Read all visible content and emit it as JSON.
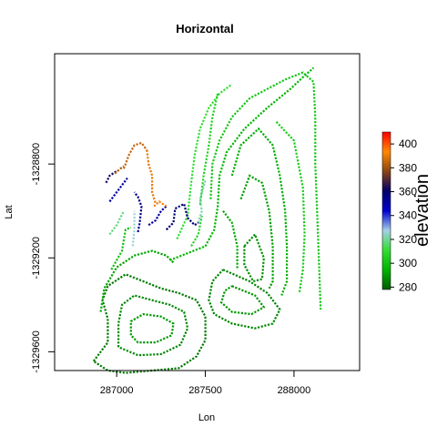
{
  "chart_data": {
    "type": "heatmap",
    "title": "Horizontal",
    "xlabel": "Lon",
    "ylabel": "Lat",
    "xlim": [
      286650,
      288370
    ],
    "ylim": [
      -1329680,
      -1328330
    ],
    "x_ticks": [
      {
        "value": 287000,
        "label": "287000"
      },
      {
        "value": 287500,
        "label": "287500"
      },
      {
        "value": 288000,
        "label": "288000"
      }
    ],
    "y_ticks": [
      {
        "value": -1328800,
        "label": "-1328800"
      },
      {
        "value": -1329200,
        "label": "-1329200"
      },
      {
        "value": -1329600,
        "label": "-1329600"
      }
    ],
    "colorbar": {
      "title": "elevation",
      "range": [
        278,
        410
      ],
      "ticks": [
        280,
        300,
        320,
        340,
        360,
        380,
        400
      ],
      "colors": [
        "#005a00",
        "#00b200",
        "#33dd33",
        "#a6cfea",
        "#0000cc",
        "#000066",
        "#8b4513",
        "#ff8800",
        "#ff0000"
      ]
    },
    "contours": [
      {
        "elevation": 284,
        "points": [
          [
            286870,
            -1329640
          ],
          [
            286950,
            -1329560
          ],
          [
            286950,
            -1329460
          ],
          [
            286920,
            -1329380
          ],
          [
            286950,
            -1329320
          ],
          [
            287050,
            -1329270
          ],
          [
            287150,
            -1329300
          ],
          [
            287250,
            -1329330
          ],
          [
            287350,
            -1329350
          ],
          [
            287450,
            -1329380
          ],
          [
            287500,
            -1329450
          ],
          [
            287500,
            -1329550
          ],
          [
            287450,
            -1329620
          ],
          [
            287350,
            -1329670
          ],
          [
            287200,
            -1329680
          ],
          [
            287050,
            -1329690
          ],
          [
            286950,
            -1329680
          ],
          [
            286870,
            -1329640
          ]
        ]
      },
      {
        "elevation": 287,
        "points": [
          [
            287010,
            -1329580
          ],
          [
            287010,
            -1329480
          ],
          [
            287030,
            -1329400
          ],
          [
            287100,
            -1329360
          ],
          [
            287200,
            -1329380
          ],
          [
            287300,
            -1329400
          ],
          [
            287380,
            -1329430
          ],
          [
            287400,
            -1329500
          ],
          [
            287360,
            -1329570
          ],
          [
            287250,
            -1329610
          ],
          [
            287120,
            -1329615
          ],
          [
            287010,
            -1329580
          ]
        ]
      },
      {
        "elevation": 290,
        "points": [
          [
            287080,
            -1329530
          ],
          [
            287080,
            -1329470
          ],
          [
            287150,
            -1329440
          ],
          [
            287250,
            -1329450
          ],
          [
            287320,
            -1329480
          ],
          [
            287310,
            -1329530
          ],
          [
            287220,
            -1329560
          ],
          [
            287120,
            -1329560
          ],
          [
            287080,
            -1329530
          ]
        ]
      },
      {
        "elevation": 286,
        "points": [
          [
            287600,
            -1329250
          ],
          [
            287750,
            -1329300
          ],
          [
            287850,
            -1329350
          ],
          [
            287920,
            -1329420
          ],
          [
            287880,
            -1329480
          ],
          [
            287780,
            -1329500
          ],
          [
            287650,
            -1329480
          ],
          [
            287550,
            -1329440
          ],
          [
            287520,
            -1329380
          ],
          [
            287540,
            -1329300
          ],
          [
            287600,
            -1329250
          ]
        ]
      },
      {
        "elevation": 289,
        "points": [
          [
            287650,
            -1329320
          ],
          [
            287780,
            -1329360
          ],
          [
            287830,
            -1329410
          ],
          [
            287760,
            -1329440
          ],
          [
            287650,
            -1329430
          ],
          [
            287590,
            -1329390
          ],
          [
            287610,
            -1329340
          ],
          [
            287650,
            -1329320
          ]
        ]
      },
      {
        "elevation": 292,
        "points": [
          [
            286910,
            -1329430
          ],
          [
            286930,
            -1329330
          ],
          [
            287000,
            -1329240
          ],
          [
            287100,
            -1329190
          ],
          [
            287200,
            -1329170
          ],
          [
            287280,
            -1329190
          ],
          [
            287320,
            -1329220
          ]
        ]
      },
      {
        "elevation": 300,
        "points": [
          [
            286970,
            -1329250
          ],
          [
            287030,
            -1329170
          ],
          [
            287050,
            -1329080
          ],
          [
            287080,
            -1329070
          ]
        ]
      },
      {
        "elevation": 296,
        "points": [
          [
            287300,
            -1329210
          ],
          [
            287400,
            -1329180
          ],
          [
            287500,
            -1329150
          ],
          [
            287550,
            -1329080
          ],
          [
            287570,
            -1328980
          ],
          [
            287580,
            -1328850
          ],
          [
            287620,
            -1328750
          ],
          [
            287720,
            -1328650
          ],
          [
            287850,
            -1328560
          ],
          [
            287980,
            -1328480
          ],
          [
            288050,
            -1328430
          ],
          [
            288110,
            -1328390
          ]
        ]
      },
      {
        "elevation": 302,
        "points": [
          [
            287530,
            -1328950
          ],
          [
            287540,
            -1328800
          ],
          [
            287580,
            -1328700
          ],
          [
            287650,
            -1328600
          ],
          [
            287750,
            -1328520
          ],
          [
            287850,
            -1328480
          ],
          [
            287950,
            -1328440
          ],
          [
            288050,
            -1328410
          ],
          [
            288110,
            -1328450
          ],
          [
            288120,
            -1328600
          ],
          [
            288120,
            -1328800
          ],
          [
            288130,
            -1329000
          ],
          [
            288140,
            -1329200
          ],
          [
            288150,
            -1329420
          ]
        ]
      },
      {
        "elevation": 304,
        "points": [
          [
            287900,
            -1328620
          ],
          [
            288000,
            -1328700
          ],
          [
            288050,
            -1328900
          ],
          [
            288060,
            -1329100
          ],
          [
            288050,
            -1329250
          ],
          [
            288030,
            -1329350
          ]
        ]
      },
      {
        "elevation": 294,
        "points": [
          [
            287650,
            -1328850
          ],
          [
            287700,
            -1328720
          ],
          [
            287800,
            -1328650
          ],
          [
            287880,
            -1328720
          ],
          [
            287920,
            -1328850
          ],
          [
            287950,
            -1329000
          ],
          [
            287960,
            -1329150
          ],
          [
            287960,
            -1329300
          ],
          [
            287930,
            -1329360
          ]
        ]
      },
      {
        "elevation": 291,
        "points": [
          [
            287700,
            -1328950
          ],
          [
            287750,
            -1328850
          ],
          [
            287820,
            -1328880
          ],
          [
            287860,
            -1329000
          ],
          [
            287880,
            -1329150
          ],
          [
            287880,
            -1329300
          ],
          [
            287860,
            -1329330
          ]
        ]
      },
      {
        "elevation": 288,
        "points": [
          [
            287720,
            -1329150
          ],
          [
            287780,
            -1329100
          ],
          [
            287830,
            -1329200
          ],
          [
            287820,
            -1329290
          ],
          [
            287770,
            -1329300
          ],
          [
            287720,
            -1329230
          ],
          [
            287720,
            -1329150
          ]
        ]
      },
      {
        "elevation": 293,
        "points": [
          [
            287600,
            -1329000
          ],
          [
            287650,
            -1329050
          ],
          [
            287680,
            -1329150
          ],
          [
            287680,
            -1329250
          ]
        ]
      },
      {
        "elevation": 311,
        "points": [
          [
            287340,
            -1329120
          ],
          [
            287400,
            -1329020
          ],
          [
            287420,
            -1328880
          ],
          [
            287440,
            -1328760
          ],
          [
            287470,
            -1328650
          ],
          [
            287520,
            -1328560
          ],
          [
            287580,
            -1328500
          ],
          [
            287650,
            -1328460
          ]
        ]
      },
      {
        "elevation": 306,
        "points": [
          [
            287570,
            -1328500
          ],
          [
            287540,
            -1328600
          ],
          [
            287520,
            -1328720
          ],
          [
            287490,
            -1328850
          ],
          [
            287470,
            -1328980
          ]
        ]
      },
      {
        "elevation": 308,
        "points": [
          [
            287420,
            -1329150
          ],
          [
            287460,
            -1329100
          ],
          [
            287480,
            -1329020
          ]
        ]
      },
      {
        "elevation": 322,
        "points": [
          [
            287460,
            -1329050
          ],
          [
            287480,
            -1329000
          ],
          [
            287470,
            -1328950
          ],
          [
            287500,
            -1328870
          ]
        ]
      },
      {
        "elevation": 318,
        "points": [
          [
            286960,
            -1329100
          ],
          [
            287000,
            -1329060
          ],
          [
            287040,
            -1329000
          ]
        ]
      },
      {
        "elevation": 326,
        "points": [
          [
            287090,
            -1329150
          ],
          [
            287100,
            -1329080
          ],
          [
            287100,
            -1329000
          ]
        ]
      },
      {
        "elevation": 350,
        "points": [
          [
            286960,
            -1328960
          ],
          [
            287000,
            -1328920
          ],
          [
            287040,
            -1328880
          ],
          [
            287060,
            -1328860
          ]
        ]
      },
      {
        "elevation": 355,
        "points": [
          [
            287120,
            -1329090
          ],
          [
            287130,
            -1329050
          ],
          [
            287140,
            -1328980
          ],
          [
            287120,
            -1328940
          ],
          [
            287100,
            -1328920
          ]
        ]
      },
      {
        "elevation": 362,
        "points": [
          [
            286940,
            -1328880
          ],
          [
            286960,
            -1328850
          ],
          [
            287000,
            -1328830
          ]
        ]
      },
      {
        "elevation": 358,
        "points": [
          [
            287280,
            -1329080
          ],
          [
            287320,
            -1329050
          ],
          [
            287330,
            -1328990
          ],
          [
            287380,
            -1328970
          ],
          [
            287400,
            -1329030
          ],
          [
            287440,
            -1329060
          ],
          [
            287460,
            -1329050
          ]
        ]
      },
      {
        "elevation": 352,
        "points": [
          [
            287180,
            -1329060
          ],
          [
            287220,
            -1329040
          ],
          [
            287250,
            -1329000
          ],
          [
            287280,
            -1328980
          ]
        ]
      },
      {
        "elevation": 385,
        "points": [
          [
            287040,
            -1328820
          ],
          [
            287070,
            -1328760
          ],
          [
            287100,
            -1328720
          ],
          [
            287140,
            -1328710
          ],
          [
            287170,
            -1328740
          ]
        ]
      },
      {
        "elevation": 390,
        "points": [
          [
            287170,
            -1328740
          ],
          [
            287180,
            -1328800
          ],
          [
            287200,
            -1328850
          ],
          [
            287200,
            -1328920
          ],
          [
            287220,
            -1328970
          ]
        ]
      },
      {
        "elevation": 395,
        "points": [
          [
            287210,
            -1328980
          ],
          [
            287240,
            -1328960
          ],
          [
            287280,
            -1328980
          ]
        ]
      },
      {
        "elevation": 382,
        "points": [
          [
            286990,
            -1328840
          ],
          [
            287020,
            -1328820
          ],
          [
            287040,
            -1328810
          ]
        ]
      }
    ]
  }
}
